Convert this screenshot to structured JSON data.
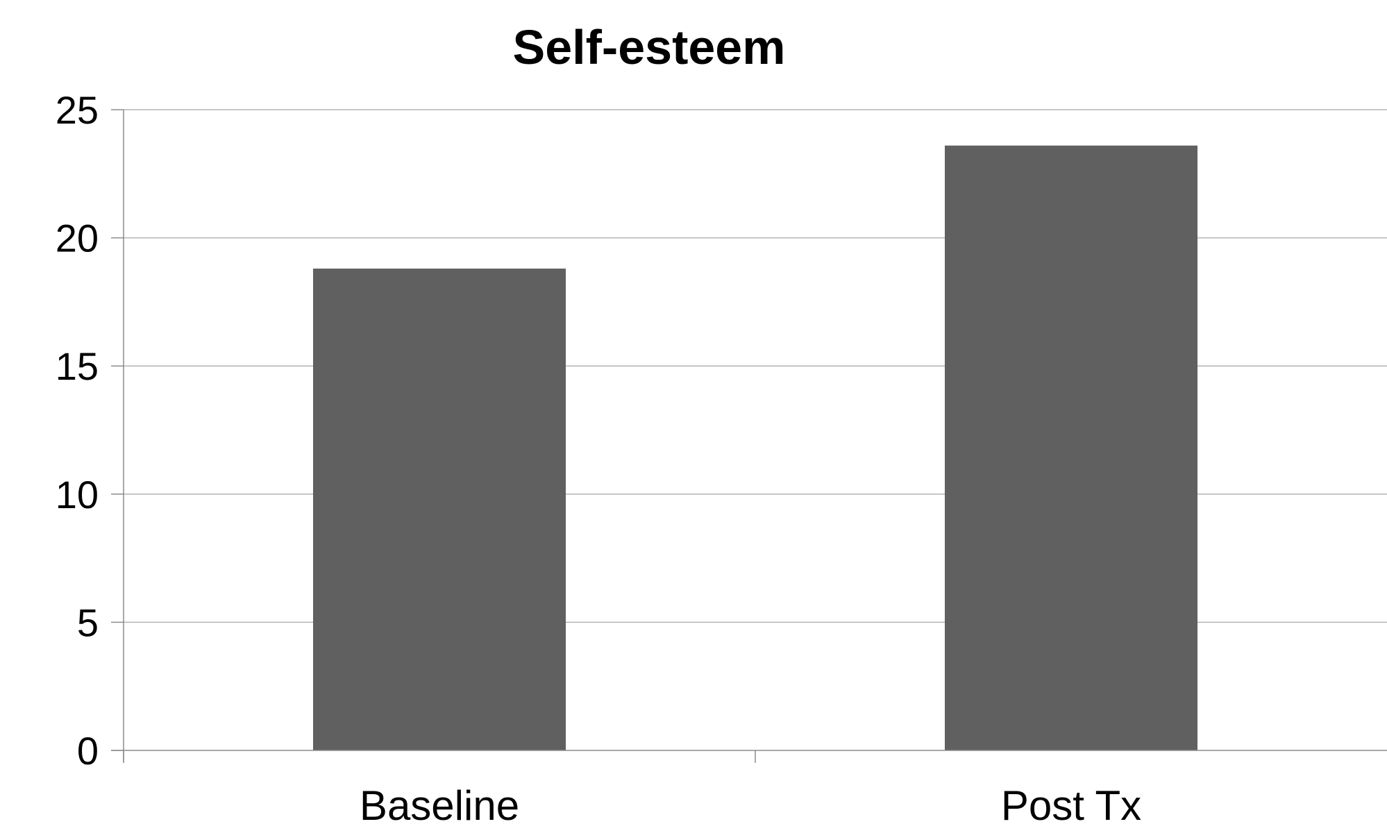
{
  "chart_data": {
    "type": "bar",
    "title": "Self-esteem",
    "categories": [
      "Baseline",
      "Post Tx"
    ],
    "series": [
      {
        "values": [
          18.8,
          23.6
        ]
      }
    ],
    "xlabel": "",
    "ylabel": "",
    "ylim": [
      0,
      25
    ],
    "yticks": [
      "0",
      "5",
      "10",
      "15",
      "20",
      "25"
    ],
    "grid": true,
    "legend": "none",
    "colors": {
      "bar": "#606060",
      "grid": "#b3b3b3",
      "axis": "#8c8c8c",
      "text": "#000000"
    }
  }
}
